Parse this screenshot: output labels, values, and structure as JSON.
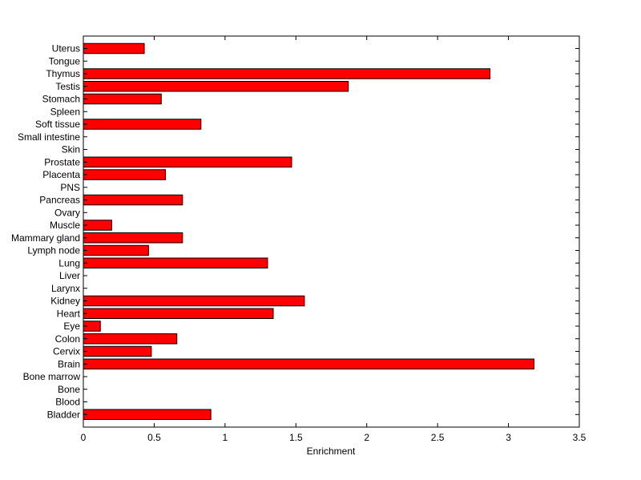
{
  "chart_data": {
    "type": "bar",
    "orientation": "horizontal",
    "categories": [
      "Uterus",
      "Tongue",
      "Thymus",
      "Testis",
      "Stomach",
      "Spleen",
      "Soft tissue",
      "Small intestine",
      "Skin",
      "Prostate",
      "Placenta",
      "PNS",
      "Pancreas",
      "Ovary",
      "Muscle",
      "Mammary gland",
      "Lymph node",
      "Lung",
      "Liver",
      "Larynx",
      "Kidney",
      "Heart",
      "Eye",
      "Colon",
      "Cervix",
      "Brain",
      "Bone marrow",
      "Bone",
      "Blood",
      "Bladder"
    ],
    "values": [
      0.43,
      0,
      2.87,
      1.87,
      0.55,
      0,
      0.83,
      0,
      0,
      1.47,
      0.58,
      0,
      0.7,
      0,
      0.2,
      0.7,
      0.46,
      1.3,
      0,
      0,
      1.56,
      1.34,
      0.12,
      0.66,
      0.48,
      3.18,
      0,
      0,
      0,
      0.9
    ],
    "xlabel": "Enrichment",
    "ylabel": "",
    "title": "",
    "xlim": [
      0,
      3.5
    ],
    "xticks": [
      "0",
      "0.5",
      "1",
      "1.5",
      "2",
      "2.5",
      "3",
      "3.5"
    ],
    "bar_color": "#ff0000",
    "bar_edge_color": "#000000",
    "grid": false
  }
}
